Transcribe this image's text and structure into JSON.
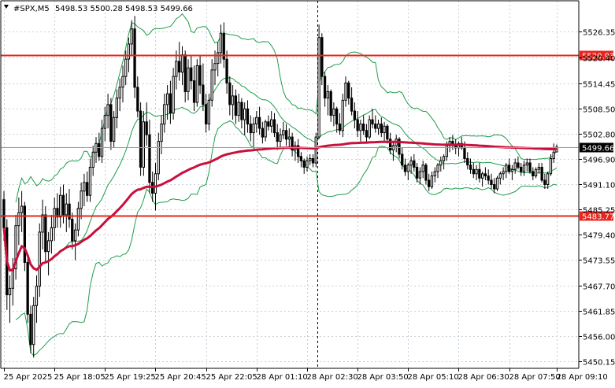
{
  "header": {
    "symbol": "#SPX,M5",
    "ohlc": "5498.53 5500.28 5498.53 5499.66"
  },
  "colors": {
    "grid": "#c8d0d8",
    "candle": "#000000",
    "band": "#1f9d4a",
    "ma": "#c8103c",
    "level_line": "#e8241c",
    "price_line": "#d98a5a",
    "price_box": "#000000"
  },
  "chart_data": {
    "type": "candlestick",
    "timeframe": "M5",
    "ylim": [
      5448.5,
      5533.5
    ],
    "y_ticks": [
      "5526.35",
      "5520.40",
      "5514.45",
      "5508.50",
      "5502.80",
      "5496.90",
      "5491.10",
      "5485.25",
      "5479.40",
      "5473.55",
      "5467.70",
      "5461.85",
      "5456.00",
      "5450.15"
    ],
    "x_ticks": [
      "25 Apr 2025",
      "25 Apr 18:05",
      "25 Apr 19:25",
      "25 Apr 20:45",
      "25 Apr 22:05",
      "28 Apr 01:10",
      "28 Apr 02:30",
      "28 Apr 03:50",
      "28 Apr 05:10",
      "28 Apr 06:30",
      "28 Apr 07:50",
      "28 Apr 09:10"
    ],
    "levels": [
      {
        "label": "5520.93",
        "value": 5520.93
      },
      {
        "label": "5483.77",
        "value": 5483.77
      }
    ],
    "current_price": {
      "label": "5499.66",
      "value": 5499.66
    },
    "session_break_after_candle": 105,
    "candles": [
      [
        5487.5,
        5489.5,
        5478.0,
        5481.0
      ],
      [
        5481.0,
        5483.0,
        5462.0,
        5465.5
      ],
      [
        5465.5,
        5470.0,
        5459.0,
        5467.0
      ],
      [
        5467.0,
        5474.0,
        5463.0,
        5471.5
      ],
      [
        5471.5,
        5484.0,
        5469.0,
        5481.5
      ],
      [
        5481.5,
        5488.0,
        5477.0,
        5484.5
      ],
      [
        5484.5,
        5489.5,
        5480.0,
        5486.0
      ],
      [
        5486.0,
        5487.0,
        5471.0,
        5473.0
      ],
      [
        5473.0,
        5475.0,
        5459.0,
        5461.0
      ],
      [
        5461.0,
        5463.0,
        5452.0,
        5454.0
      ],
      [
        5454.0,
        5465.0,
        5451.0,
        5463.0
      ],
      [
        5463.0,
        5470.0,
        5459.0,
        5467.5
      ],
      [
        5467.5,
        5482.0,
        5465.0,
        5480.0
      ],
      [
        5480.0,
        5487.5,
        5476.0,
        5484.0
      ],
      [
        5484.0,
        5486.0,
        5473.0,
        5475.5
      ],
      [
        5475.5,
        5480.0,
        5470.0,
        5478.0
      ],
      [
        5478.0,
        5484.0,
        5475.0,
        5481.0
      ],
      [
        5481.0,
        5488.0,
        5478.0,
        5485.5
      ],
      [
        5485.5,
        5489.0,
        5481.0,
        5483.5
      ],
      [
        5483.5,
        5490.5,
        5481.0,
        5488.5
      ],
      [
        5488.5,
        5491.0,
        5482.0,
        5484.0
      ],
      [
        5484.0,
        5489.0,
        5480.0,
        5486.5
      ],
      [
        5486.5,
        5490.0,
        5481.0,
        5483.0
      ],
      [
        5483.0,
        5484.5,
        5476.0,
        5478.0
      ],
      [
        5478.0,
        5482.0,
        5473.5,
        5480.5
      ],
      [
        5480.5,
        5487.0,
        5479.0,
        5485.5
      ],
      [
        5485.5,
        5491.5,
        5483.0,
        5489.5
      ],
      [
        5489.5,
        5493.5,
        5486.0,
        5491.5
      ],
      [
        5491.5,
        5494.0,
        5487.0,
        5488.5
      ],
      [
        5488.5,
        5497.0,
        5487.0,
        5495.0
      ],
      [
        5495.0,
        5500.0,
        5493.0,
        5498.5
      ],
      [
        5498.5,
        5502.0,
        5496.0,
        5500.5
      ],
      [
        5500.5,
        5503.0,
        5496.5,
        5497.5
      ],
      [
        5497.5,
        5506.0,
        5496.0,
        5504.0
      ],
      [
        5504.0,
        5509.0,
        5501.0,
        5507.0
      ],
      [
        5507.0,
        5512.0,
        5504.0,
        5509.5
      ],
      [
        5509.5,
        5511.0,
        5499.0,
        5501.0
      ],
      [
        5501.0,
        5508.0,
        5499.5,
        5506.5
      ],
      [
        5506.5,
        5513.0,
        5504.0,
        5511.0
      ],
      [
        5511.0,
        5515.5,
        5508.0,
        5513.5
      ],
      [
        5513.5,
        5518.5,
        5510.0,
        5516.0
      ],
      [
        5516.0,
        5522.0,
        5514.0,
        5520.0
      ],
      [
        5520.0,
        5525.0,
        5517.0,
        5523.5
      ],
      [
        5523.5,
        5529.0,
        5521.0,
        5527.0
      ],
      [
        5527.0,
        5530.0,
        5511.0,
        5513.5
      ],
      [
        5513.5,
        5516.0,
        5506.5,
        5508.0
      ],
      [
        5508.0,
        5510.0,
        5493.0,
        5495.0
      ],
      [
        5495.0,
        5508.0,
        5493.0,
        5505.5
      ],
      [
        5505.5,
        5510.0,
        5500.0,
        5502.5
      ],
      [
        5502.5,
        5506.0,
        5489.0,
        5491.5
      ],
      [
        5491.5,
        5494.0,
        5487.0,
        5489.0
      ],
      [
        5489.0,
        5496.0,
        5485.0,
        5493.5
      ],
      [
        5493.5,
        5503.0,
        5492.0,
        5501.0
      ],
      [
        5501.0,
        5507.0,
        5498.0,
        5505.0
      ],
      [
        5505.0,
        5512.0,
        5503.0,
        5509.5
      ],
      [
        5509.5,
        5514.0,
        5506.0,
        5512.0
      ],
      [
        5512.0,
        5515.0,
        5505.0,
        5507.5
      ],
      [
        5507.5,
        5518.0,
        5506.0,
        5516.0
      ],
      [
        5516.0,
        5522.0,
        5513.0,
        5519.5
      ],
      [
        5519.5,
        5524.0,
        5515.0,
        5517.0
      ],
      [
        5517.0,
        5523.0,
        5514.0,
        5521.0
      ],
      [
        5521.0,
        5522.0,
        5510.0,
        5512.5
      ],
      [
        5512.5,
        5520.0,
        5510.5,
        5518.0
      ],
      [
        5518.0,
        5521.0,
        5513.0,
        5515.0
      ],
      [
        5515.0,
        5518.5,
        5508.0,
        5510.0
      ],
      [
        5510.0,
        5520.0,
        5509.0,
        5518.5
      ],
      [
        5518.5,
        5521.0,
        5512.0,
        5514.0
      ],
      [
        5514.0,
        5519.0,
        5508.0,
        5509.5
      ],
      [
        5509.5,
        5512.0,
        5503.0,
        5505.0
      ],
      [
        5505.0,
        5512.0,
        5503.5,
        5510.5
      ],
      [
        5510.5,
        5520.0,
        5509.0,
        5517.5
      ],
      [
        5517.5,
        5522.0,
        5514.0,
        5519.0
      ],
      [
        5519.0,
        5524.0,
        5516.0,
        5521.5
      ],
      [
        5521.5,
        5528.0,
        5519.0,
        5526.0
      ],
      [
        5526.0,
        5528.5,
        5518.0,
        5520.0
      ],
      [
        5520.0,
        5522.0,
        5512.0,
        5514.5
      ],
      [
        5514.5,
        5516.0,
        5507.0,
        5509.5
      ],
      [
        5509.5,
        5514.0,
        5506.0,
        5511.5
      ],
      [
        5511.5,
        5513.0,
        5505.0,
        5507.0
      ],
      [
        5507.0,
        5512.0,
        5505.5,
        5510.0
      ],
      [
        5510.0,
        5511.0,
        5504.0,
        5506.0
      ],
      [
        5506.0,
        5510.0,
        5502.5,
        5508.5
      ],
      [
        5508.5,
        5510.5,
        5503.0,
        5505.0
      ],
      [
        5505.0,
        5507.0,
        5501.0,
        5503.0
      ],
      [
        5503.0,
        5506.5,
        5499.5,
        5505.0
      ],
      [
        5505.0,
        5508.0,
        5503.0,
        5506.5
      ],
      [
        5506.5,
        5509.0,
        5502.5,
        5504.0
      ],
      [
        5504.0,
        5505.5,
        5500.5,
        5502.0
      ],
      [
        5502.0,
        5506.0,
        5501.0,
        5505.5
      ],
      [
        5505.5,
        5507.0,
        5503.5,
        5504.5
      ],
      [
        5504.5,
        5508.0,
        5503.0,
        5506.0
      ],
      [
        5506.0,
        5507.5,
        5502.0,
        5503.0
      ],
      [
        5503.0,
        5505.0,
        5499.0,
        5501.0
      ],
      [
        5501.0,
        5504.0,
        5499.5,
        5502.5
      ],
      [
        5502.5,
        5505.5,
        5501.5,
        5503.5
      ],
      [
        5503.5,
        5505.0,
        5500.0,
        5501.5
      ],
      [
        5501.5,
        5504.0,
        5499.5,
        5502.0
      ],
      [
        5502.0,
        5503.0,
        5497.5,
        5499.0
      ],
      [
        5499.0,
        5501.0,
        5496.5,
        5500.0
      ],
      [
        5500.0,
        5501.5,
        5496.0,
        5497.5
      ],
      [
        5497.5,
        5498.5,
        5495.0,
        5496.5
      ],
      [
        5496.5,
        5497.0,
        5493.5,
        5495.0
      ],
      [
        5495.0,
        5497.5,
        5494.0,
        5496.5
      ],
      [
        5496.5,
        5498.0,
        5495.5,
        5497.0
      ],
      [
        5497.0,
        5498.0,
        5495.0,
        5496.0
      ],
      [
        5496.0,
        5503.0,
        5495.0,
        5502.0
      ],
      [
        5502.0,
        5528.0,
        5501.5,
        5525.0
      ],
      [
        5525.0,
        5526.0,
        5514.0,
        5516.0
      ],
      [
        5516.0,
        5517.0,
        5509.0,
        5511.0
      ],
      [
        5511.0,
        5514.0,
        5507.0,
        5512.5
      ],
      [
        5512.5,
        5513.0,
        5505.5,
        5507.0
      ],
      [
        5507.0,
        5510.0,
        5504.5,
        5508.5
      ],
      [
        5508.5,
        5509.0,
        5503.0,
        5505.0
      ],
      [
        5505.0,
        5507.5,
        5502.5,
        5503.5
      ],
      [
        5503.5,
        5512.0,
        5502.0,
        5510.5
      ],
      [
        5510.5,
        5516.0,
        5509.0,
        5514.5
      ],
      [
        5514.5,
        5515.0,
        5509.5,
        5511.0
      ],
      [
        5511.0,
        5513.5,
        5507.0,
        5508.0
      ],
      [
        5508.0,
        5510.0,
        5504.0,
        5506.0
      ],
      [
        5506.0,
        5508.0,
        5502.0,
        5503.5
      ],
      [
        5503.5,
        5506.0,
        5501.0,
        5505.0
      ],
      [
        5505.0,
        5507.0,
        5502.5,
        5503.5
      ],
      [
        5503.5,
        5505.0,
        5500.5,
        5502.0
      ],
      [
        5502.0,
        5507.0,
        5501.5,
        5506.0
      ],
      [
        5506.0,
        5508.5,
        5504.0,
        5505.0
      ],
      [
        5505.0,
        5507.0,
        5503.0,
        5504.0
      ],
      [
        5504.0,
        5506.0,
        5502.5,
        5505.0
      ],
      [
        5505.0,
        5506.5,
        5502.0,
        5503.0
      ],
      [
        5503.0,
        5505.5,
        5501.0,
        5504.5
      ],
      [
        5504.5,
        5505.0,
        5500.5,
        5501.5
      ],
      [
        5501.5,
        5503.0,
        5498.0,
        5499.0
      ],
      [
        5499.0,
        5501.0,
        5496.5,
        5500.0
      ],
      [
        5500.0,
        5502.5,
        5498.5,
        5501.5
      ],
      [
        5501.5,
        5502.0,
        5497.0,
        5498.0
      ],
      [
        5498.0,
        5499.5,
        5494.5,
        5495.5
      ],
      [
        5495.5,
        5497.0,
        5493.0,
        5494.0
      ],
      [
        5494.0,
        5496.0,
        5492.0,
        5495.5
      ],
      [
        5495.5,
        5497.5,
        5493.5,
        5496.5
      ],
      [
        5496.5,
        5498.0,
        5494.0,
        5495.0
      ],
      [
        5495.0,
        5496.0,
        5491.5,
        5492.5
      ],
      [
        5492.5,
        5495.0,
        5491.0,
        5494.0
      ],
      [
        5494.0,
        5496.5,
        5492.5,
        5495.5
      ],
      [
        5495.5,
        5496.0,
        5491.0,
        5492.0
      ],
      [
        5492.0,
        5493.5,
        5489.5,
        5490.5
      ],
      [
        5490.5,
        5494.0,
        5490.0,
        5493.0
      ],
      [
        5493.0,
        5495.0,
        5491.5,
        5494.0
      ],
      [
        5494.0,
        5496.0,
        5492.5,
        5495.5
      ],
      [
        5495.5,
        5497.5,
        5494.0,
        5496.5
      ],
      [
        5496.5,
        5498.0,
        5494.5,
        5497.5
      ],
      [
        5497.5,
        5501.0,
        5496.5,
        5500.0
      ],
      [
        5500.0,
        5502.0,
        5498.5,
        5501.0
      ],
      [
        5501.0,
        5502.5,
        5499.0,
        5500.0
      ],
      [
        5500.0,
        5501.5,
        5498.0,
        5499.5
      ],
      [
        5499.5,
        5501.0,
        5497.5,
        5500.5
      ],
      [
        5500.5,
        5502.0,
        5499.0,
        5499.5
      ],
      [
        5499.5,
        5501.0,
        5496.0,
        5497.0
      ],
      [
        5497.0,
        5498.5,
        5494.5,
        5495.5
      ],
      [
        5495.5,
        5497.0,
        5493.5,
        5494.5
      ],
      [
        5494.5,
        5496.0,
        5492.5,
        5493.5
      ],
      [
        5493.5,
        5495.5,
        5492.0,
        5494.5
      ],
      [
        5494.5,
        5496.0,
        5491.5,
        5492.5
      ],
      [
        5492.5,
        5494.0,
        5490.5,
        5493.5
      ],
      [
        5493.5,
        5495.0,
        5492.0,
        5493.0
      ],
      [
        5493.0,
        5494.5,
        5491.0,
        5492.0
      ],
      [
        5492.0,
        5493.5,
        5490.0,
        5491.0
      ],
      [
        5491.0,
        5492.5,
        5489.0,
        5490.0
      ],
      [
        5490.0,
        5493.0,
        5489.5,
        5492.5
      ],
      [
        5492.5,
        5494.0,
        5491.0,
        5493.5
      ],
      [
        5493.5,
        5495.0,
        5492.0,
        5494.0
      ],
      [
        5494.0,
        5496.0,
        5492.5,
        5495.5
      ],
      [
        5495.5,
        5497.0,
        5493.5,
        5494.0
      ],
      [
        5494.0,
        5495.5,
        5492.0,
        5494.5
      ],
      [
        5494.5,
        5497.0,
        5493.5,
        5496.0
      ],
      [
        5496.0,
        5497.5,
        5494.5,
        5495.0
      ],
      [
        5495.0,
        5496.0,
        5493.0,
        5494.0
      ],
      [
        5494.0,
        5496.5,
        5493.0,
        5495.5
      ],
      [
        5495.5,
        5497.0,
        5494.0,
        5496.0
      ],
      [
        5496.0,
        5497.0,
        5493.5,
        5494.0
      ],
      [
        5494.0,
        5495.0,
        5492.0,
        5493.0
      ],
      [
        5493.0,
        5495.0,
        5492.5,
        5494.5
      ],
      [
        5494.5,
        5496.0,
        5493.5,
        5495.0
      ],
      [
        5495.0,
        5496.0,
        5491.5,
        5492.0
      ],
      [
        5492.0,
        5493.5,
        5490.0,
        5491.0
      ],
      [
        5491.0,
        5494.0,
        5490.0,
        5493.5
      ],
      [
        5493.5,
        5498.0,
        5493.0,
        5497.0
      ],
      [
        5497.0,
        5500.5,
        5496.0,
        5498.5
      ],
      [
        5498.53,
        5500.28,
        5498.53,
        5499.66
      ]
    ]
  }
}
